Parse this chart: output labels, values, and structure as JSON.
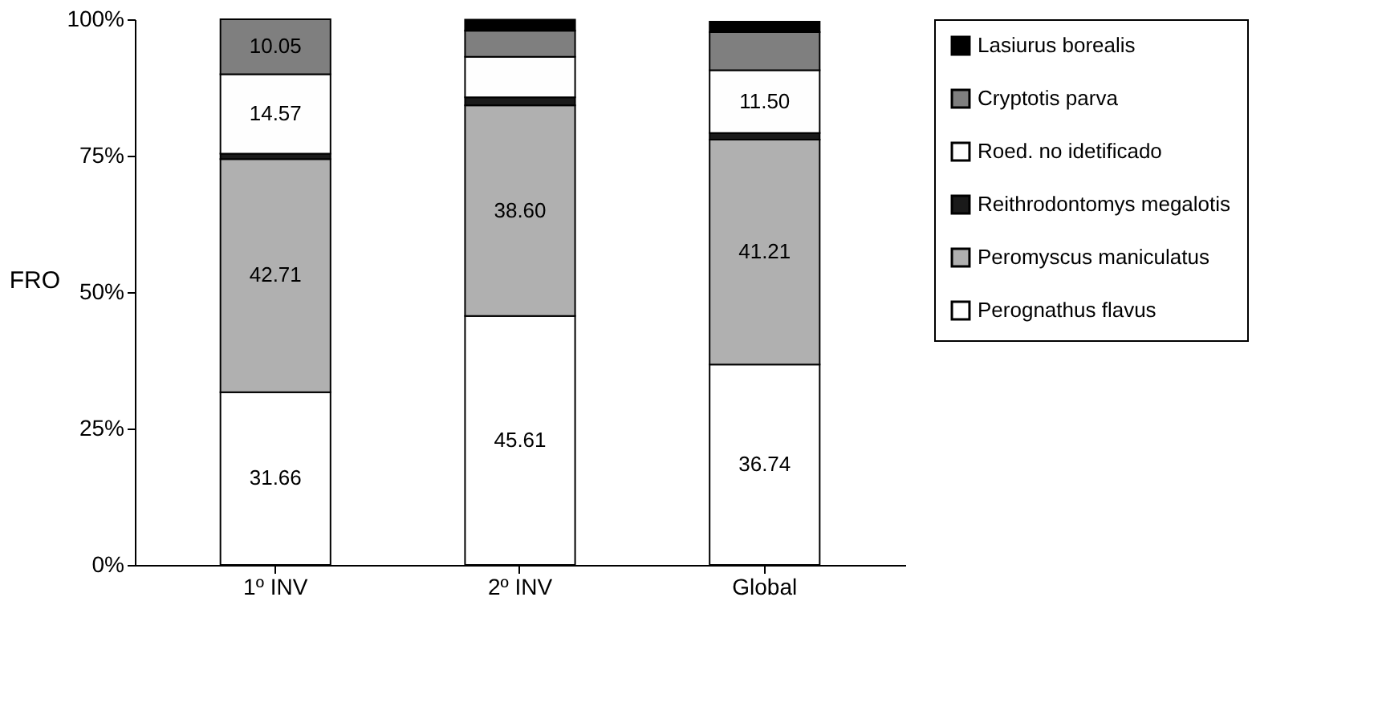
{
  "chart_data": {
    "type": "bar",
    "stacked": true,
    "ylabel": "FRO",
    "categories": [
      "1º INV",
      "2º INV",
      "Global"
    ],
    "series": [
      {
        "name": "Perognathus flavus",
        "color": "#ffffff",
        "values": [
          31.66,
          45.61,
          36.74
        ],
        "value_labels": [
          "31.66",
          "45.61",
          "36.74"
        ]
      },
      {
        "name": "Peromyscus maniculatus",
        "color": "#b0b0b0",
        "values": [
          42.71,
          38.6,
          41.21
        ],
        "value_labels": [
          "42.71",
          "38.60",
          "41.21"
        ]
      },
      {
        "name": "Reithrodontomys megalotis",
        "color": "#1a1a1a",
        "values": [
          1.0,
          1.5,
          1.2
        ],
        "value_labels": [
          null,
          null,
          null
        ]
      },
      {
        "name": "Roed. no idetificado",
        "color": "#fefefe",
        "values": [
          14.57,
          7.4,
          11.5
        ],
        "value_labels": [
          "14.57",
          null,
          "11.50"
        ]
      },
      {
        "name": "Cryptotis parva",
        "color": "#7f7f7f",
        "values": [
          10.05,
          4.8,
          7.0
        ],
        "value_labels": [
          "10.05",
          null,
          null
        ]
      },
      {
        "name": "Lasiurus borealis",
        "color": "#000000",
        "values": [
          0,
          2.0,
          1.9
        ],
        "value_labels": [
          null,
          null,
          null
        ]
      }
    ],
    "ylim": [
      0,
      100
    ],
    "yticks": [
      {
        "value": 0,
        "label": "0%"
      },
      {
        "value": 25,
        "label": "25%"
      },
      {
        "value": 50,
        "label": "50%"
      },
      {
        "value": 75,
        "label": "75%"
      },
      {
        "value": 100,
        "label": "100%"
      }
    ],
    "grid": false,
    "legend": "right"
  }
}
